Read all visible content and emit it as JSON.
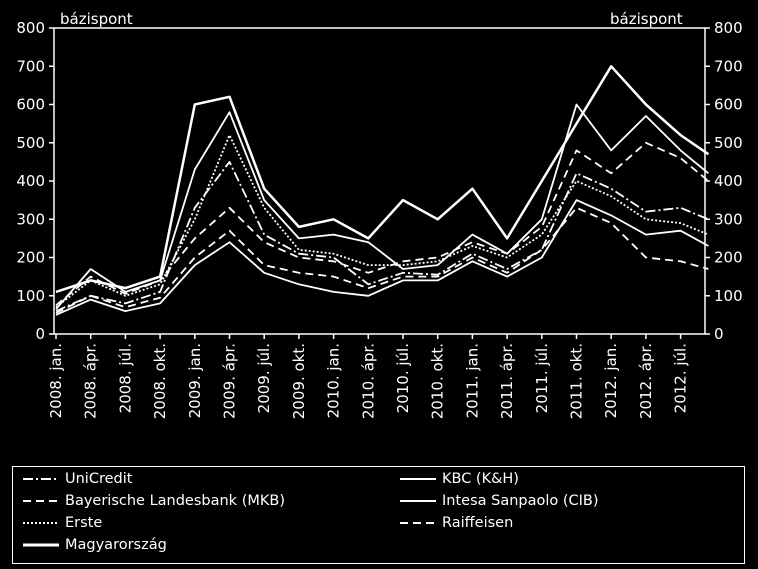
{
  "chart_data": {
    "type": "line",
    "ylabel_left": "bázispont",
    "ylabel_right": "bázispont",
    "ylim": [
      0,
      800
    ],
    "yticks": [
      "0",
      "100",
      "200",
      "300",
      "400",
      "500",
      "600",
      "700",
      "800"
    ],
    "x_tick_labels": [
      "2008. jan.",
      "2008. ápr.",
      "2008. júl.",
      "2008. okt.",
      "2009. jan.",
      "2009. ápr.",
      "2009. júl.",
      "2009. okt.",
      "2010. jan.",
      "2010. ápr.",
      "2010. júl.",
      "2010. okt.",
      "2011. jan.",
      "2011. ápr.",
      "2011. júl.",
      "2011. okt.",
      "2012. jan.",
      "2012. ápr.",
      "2012. júl."
    ],
    "grid": false,
    "legend_position": "bottom",
    "series": [
      {
        "name": "UniCredit",
        "style": "dashdot",
        "x": [
          0,
          1,
          2,
          3,
          4,
          5,
          6,
          7,
          8,
          9,
          10,
          11,
          12,
          13,
          14,
          15,
          16,
          17,
          18,
          18.8
        ],
        "values": [
          60,
          100,
          80,
          110,
          330,
          450,
          260,
          210,
          200,
          130,
          160,
          155,
          210,
          170,
          220,
          420,
          380,
          320,
          330,
          300
        ]
      },
      {
        "name": "KBC (K&H)",
        "style": "solid",
        "x": [
          0,
          1,
          2,
          3,
          4,
          5,
          6,
          7,
          8,
          9,
          10,
          11,
          12,
          13,
          14,
          15,
          16,
          17,
          18,
          18.8
        ],
        "values": [
          65,
          170,
          110,
          140,
          430,
          580,
          350,
          250,
          260,
          240,
          170,
          180,
          260,
          210,
          300,
          600,
          480,
          570,
          480,
          420
        ]
      },
      {
        "name": "Bayerische Landesbank (MKB)",
        "style": "dashed",
        "x": [
          0,
          1,
          2,
          3,
          4,
          5,
          6,
          7,
          8,
          9,
          10,
          11,
          12,
          13,
          14,
          15,
          16,
          17,
          18,
          18.8
        ],
        "values": [
          75,
          150,
          105,
          140,
          250,
          330,
          240,
          200,
          190,
          160,
          190,
          200,
          240,
          210,
          280,
          480,
          420,
          500,
          460,
          400
        ]
      },
      {
        "name": "Intesa Sanpaolo (CIB)",
        "style": "solid",
        "x": [
          0,
          1,
          2,
          3,
          4,
          5,
          6,
          7,
          8,
          9,
          10,
          11,
          12,
          13,
          14,
          15,
          16,
          17,
          18,
          18.8
        ],
        "values": [
          50,
          90,
          60,
          80,
          180,
          240,
          160,
          130,
          110,
          100,
          140,
          140,
          190,
          150,
          200,
          350,
          310,
          260,
          270,
          230
        ]
      },
      {
        "name": "Erste",
        "style": "dotted",
        "x": [
          0,
          1,
          2,
          3,
          4,
          5,
          6,
          7,
          8,
          9,
          10,
          11,
          12,
          13,
          14,
          15,
          16,
          17,
          18,
          18.8
        ],
        "values": [
          70,
          140,
          100,
          130,
          300,
          520,
          330,
          220,
          210,
          180,
          180,
          190,
          230,
          200,
          260,
          400,
          360,
          300,
          290,
          260
        ]
      },
      {
        "name": "Raiffeisen",
        "style": "dashed",
        "x": [
          0,
          1,
          2,
          3,
          4,
          5,
          6,
          7,
          8,
          9,
          10,
          11,
          12,
          13,
          14,
          15,
          16,
          17,
          18,
          18.8
        ],
        "values": [
          55,
          100,
          70,
          95,
          200,
          270,
          180,
          160,
          150,
          120,
          150,
          150,
          200,
          160,
          220,
          330,
          290,
          200,
          190,
          170
        ]
      },
      {
        "name": "Magyarország",
        "style": "solid",
        "x": [
          0,
          1,
          2,
          3,
          4,
          5,
          6,
          7,
          8,
          9,
          10,
          11,
          12,
          13,
          14,
          15,
          16,
          17,
          18,
          18.8
        ],
        "values": [
          110,
          140,
          120,
          150,
          600,
          620,
          380,
          280,
          300,
          250,
          350,
          300,
          380,
          250,
          400,
          550,
          700,
          600,
          520,
          470
        ]
      }
    ]
  }
}
